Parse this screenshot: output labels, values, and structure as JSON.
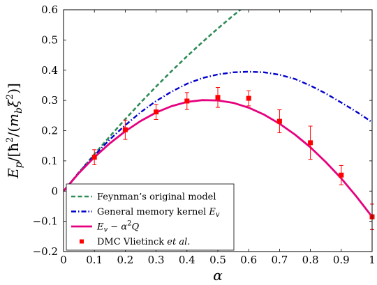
{
  "chart_data": {
    "type": "line",
    "xlabel": "α",
    "ylabel": "E_p/[ħ²/(m_bξ²)]",
    "xlim": [
      0,
      1
    ],
    "ylim": [
      -0.2,
      0.6
    ],
    "grid": false,
    "legend_placement": "bottom-left",
    "xticks": [
      "0",
      "0.1",
      "0.2",
      "0.3",
      "0.4",
      "0.5",
      "0.6",
      "0.7",
      "0.8",
      "0.9",
      "1"
    ],
    "yticks": [
      "−0.2",
      "−0.1",
      "0",
      "0.1",
      "0.2",
      "0.3",
      "0.4",
      "0.5",
      "0.6"
    ],
    "xtick_values": [
      0,
      0.1,
      0.2,
      0.3,
      0.4,
      0.5,
      0.6,
      0.7,
      0.8,
      0.9,
      1.0
    ],
    "ytick_values": [
      -0.2,
      -0.1,
      0,
      0.1,
      0.2,
      0.3,
      0.4,
      0.5,
      0.6
    ],
    "series": [
      {
        "name": "Feynman’s original model",
        "style": "dashed",
        "color": "#2e8b57",
        "x": [
          0,
          0.05,
          0.1,
          0.15,
          0.2,
          0.25,
          0.3,
          0.35,
          0.4,
          0.45,
          0.5,
          0.55,
          0.6,
          0.62
        ],
        "y": [
          0,
          0.062,
          0.122,
          0.181,
          0.238,
          0.293,
          0.346,
          0.397,
          0.446,
          0.493,
          0.538,
          0.581,
          0.622,
          0.638
        ]
      },
      {
        "name": "General memory kernel",
        "name_math": "E",
        "name_math_sub": "v",
        "style": "dashdot",
        "color": "#0000cc",
        "x": [
          0,
          0.05,
          0.1,
          0.15,
          0.2,
          0.25,
          0.3,
          0.35,
          0.4,
          0.45,
          0.5,
          0.55,
          0.6,
          0.65,
          0.7,
          0.75,
          0.8,
          0.85,
          0.9,
          0.95,
          1.0
        ],
        "y": [
          0,
          0.062,
          0.118,
          0.171,
          0.218,
          0.261,
          0.298,
          0.329,
          0.355,
          0.374,
          0.386,
          0.393,
          0.395,
          0.393,
          0.385,
          0.371,
          0.349,
          0.323,
          0.293,
          0.262,
          0.228
        ]
      },
      {
        "name": "E_v − α²Q",
        "style": "solid",
        "color": "#e6007e",
        "x": [
          0,
          0.05,
          0.1,
          0.15,
          0.2,
          0.25,
          0.3,
          0.35,
          0.4,
          0.45,
          0.5,
          0.55,
          0.6,
          0.65,
          0.7,
          0.75,
          0.8,
          0.85,
          0.9,
          0.95,
          1.0
        ],
        "y": [
          0,
          0.06,
          0.112,
          0.158,
          0.198,
          0.232,
          0.26,
          0.281,
          0.295,
          0.301,
          0.3,
          0.292,
          0.276,
          0.253,
          0.223,
          0.187,
          0.145,
          0.096,
          0.042,
          -0.019,
          -0.085
        ]
      },
      {
        "name": "DMC Vlietinck",
        "name_italic": "et al.",
        "style": "markers",
        "color": "#ff0000",
        "points": [
          {
            "x": 0.1,
            "y": 0.112,
            "err": 0.025
          },
          {
            "x": 0.2,
            "y": 0.203,
            "err": 0.032
          },
          {
            "x": 0.3,
            "y": 0.262,
            "err": 0.025
          },
          {
            "x": 0.4,
            "y": 0.298,
            "err": 0.028
          },
          {
            "x": 0.5,
            "y": 0.31,
            "err": 0.033
          },
          {
            "x": 0.6,
            "y": 0.307,
            "err": 0.025
          },
          {
            "x": 0.7,
            "y": 0.231,
            "err": 0.038
          },
          {
            "x": 0.8,
            "y": 0.16,
            "err": 0.055
          },
          {
            "x": 0.9,
            "y": 0.053,
            "err": 0.032
          },
          {
            "x": 1.0,
            "y": -0.085,
            "err": 0.042
          }
        ]
      }
    ]
  }
}
